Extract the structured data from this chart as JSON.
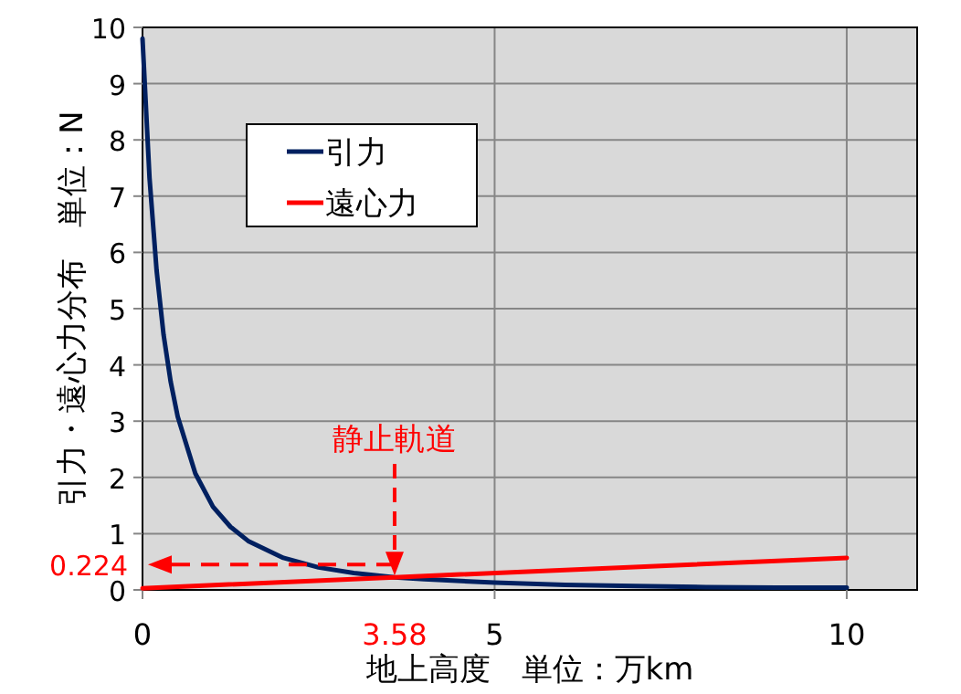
{
  "chart_data": {
    "type": "line",
    "xlabel": "地上高度　単位：万km",
    "ylabel": "引力・遠心力分布　単位：N",
    "xlim": [
      0,
      11
    ],
    "xticks": [
      0,
      5,
      10
    ],
    "ylim": [
      0,
      10
    ],
    "yticks": [
      0,
      1,
      2,
      3,
      4,
      5,
      6,
      7,
      8,
      9,
      10
    ],
    "grid": true,
    "legend": "top left",
    "marker": "none",
    "series": [
      {
        "name": "引力",
        "color": "#002060",
        "x": [
          0,
          0.1,
          0.2,
          0.3,
          0.4,
          0.5,
          0.75,
          1,
          1.25,
          1.5,
          2,
          2.5,
          3,
          3.58,
          4,
          5,
          6,
          7,
          8,
          9,
          10
        ],
        "values": [
          9.8,
          7.32,
          5.68,
          4.53,
          3.7,
          3.08,
          2.07,
          1.48,
          1.12,
          0.87,
          0.57,
          0.4,
          0.3,
          0.224,
          0.19,
          0.13,
          0.09,
          0.07,
          0.05,
          0.04,
          0.04
        ]
      },
      {
        "name": "遠心力",
        "color": "#ff0000",
        "x": [
          0,
          3.58,
          10
        ],
        "values": [
          0.03,
          0.224,
          0.57
        ]
      }
    ],
    "annotations": [
      "静止軌道",
      "0.224",
      "3.58"
    ]
  }
}
